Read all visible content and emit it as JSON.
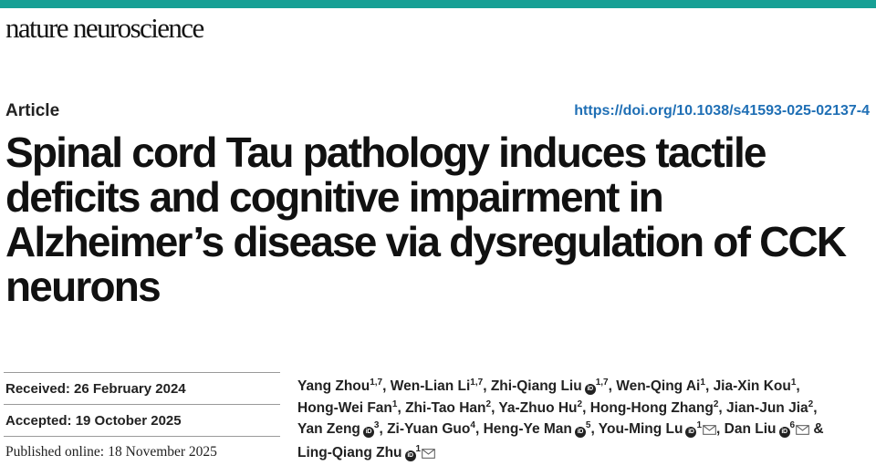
{
  "journal": {
    "name": "nature neuroscience",
    "accent_color": "#17a095"
  },
  "article": {
    "type": "Article",
    "doi": "https://doi.org/10.1038/s41593-025-02137-4",
    "title": "Spinal cord Tau pathology induces tactile deficits and cognitive impairment in Alzheimer’s disease via dysregulation of CCK neurons"
  },
  "dates": [
    {
      "label": "Received:",
      "value": "26 February 2024"
    },
    {
      "label": "Accepted:",
      "value": "19 October 2025"
    },
    {
      "label": "Published online:",
      "value": "18 November 2025"
    }
  ],
  "authors": [
    {
      "name": "Yang Zhou",
      "aff": "1,7",
      "orcid": false,
      "corresponding": false,
      "sep": ", "
    },
    {
      "name": "Wen-Lian Li",
      "aff": "1,7",
      "orcid": false,
      "corresponding": false,
      "sep": ", "
    },
    {
      "name": "Zhi-Qiang Liu",
      "aff": "1,7",
      "orcid": true,
      "corresponding": false,
      "sep": ", "
    },
    {
      "name": "Wen-Qing Ai",
      "aff": "1",
      "orcid": false,
      "corresponding": false,
      "sep": ", "
    },
    {
      "name": "Jia-Xin Kou",
      "aff": "1",
      "orcid": false,
      "corresponding": false,
      "sep": ", "
    },
    {
      "name": "Hong-Wei Fan",
      "aff": "1",
      "orcid": false,
      "corresponding": false,
      "sep": ", "
    },
    {
      "name": "Zhi-Tao Han",
      "aff": "2",
      "orcid": false,
      "corresponding": false,
      "sep": ", "
    },
    {
      "name": "Ya-Zhuo Hu",
      "aff": "2",
      "orcid": false,
      "corresponding": false,
      "sep": ", "
    },
    {
      "name": "Hong-Hong Zhang",
      "aff": "2",
      "orcid": false,
      "corresponding": false,
      "sep": ", "
    },
    {
      "name": "Jian-Jun Jia",
      "aff": "2",
      "orcid": false,
      "corresponding": false,
      "sep": ", "
    },
    {
      "name": "Yan Zeng",
      "aff": "3",
      "orcid": true,
      "corresponding": false,
      "sep": ", "
    },
    {
      "name": "Zi-Yuan Guo",
      "aff": "4",
      "orcid": false,
      "corresponding": false,
      "sep": ", "
    },
    {
      "name": "Heng-Ye Man",
      "aff": "5",
      "orcid": true,
      "corresponding": false,
      "sep": ", "
    },
    {
      "name": "You-Ming Lu",
      "aff": "1",
      "orcid": true,
      "corresponding": true,
      "sep": ", "
    },
    {
      "name": "Dan Liu",
      "aff": "6",
      "orcid": true,
      "corresponding": true,
      "sep": " & "
    },
    {
      "name": "Ling-Qiang Zhu",
      "aff": "1",
      "orcid": true,
      "corresponding": true,
      "sep": ""
    }
  ],
  "icons": {
    "orcid": "orcid-icon",
    "corresponding": "envelope-icon"
  }
}
